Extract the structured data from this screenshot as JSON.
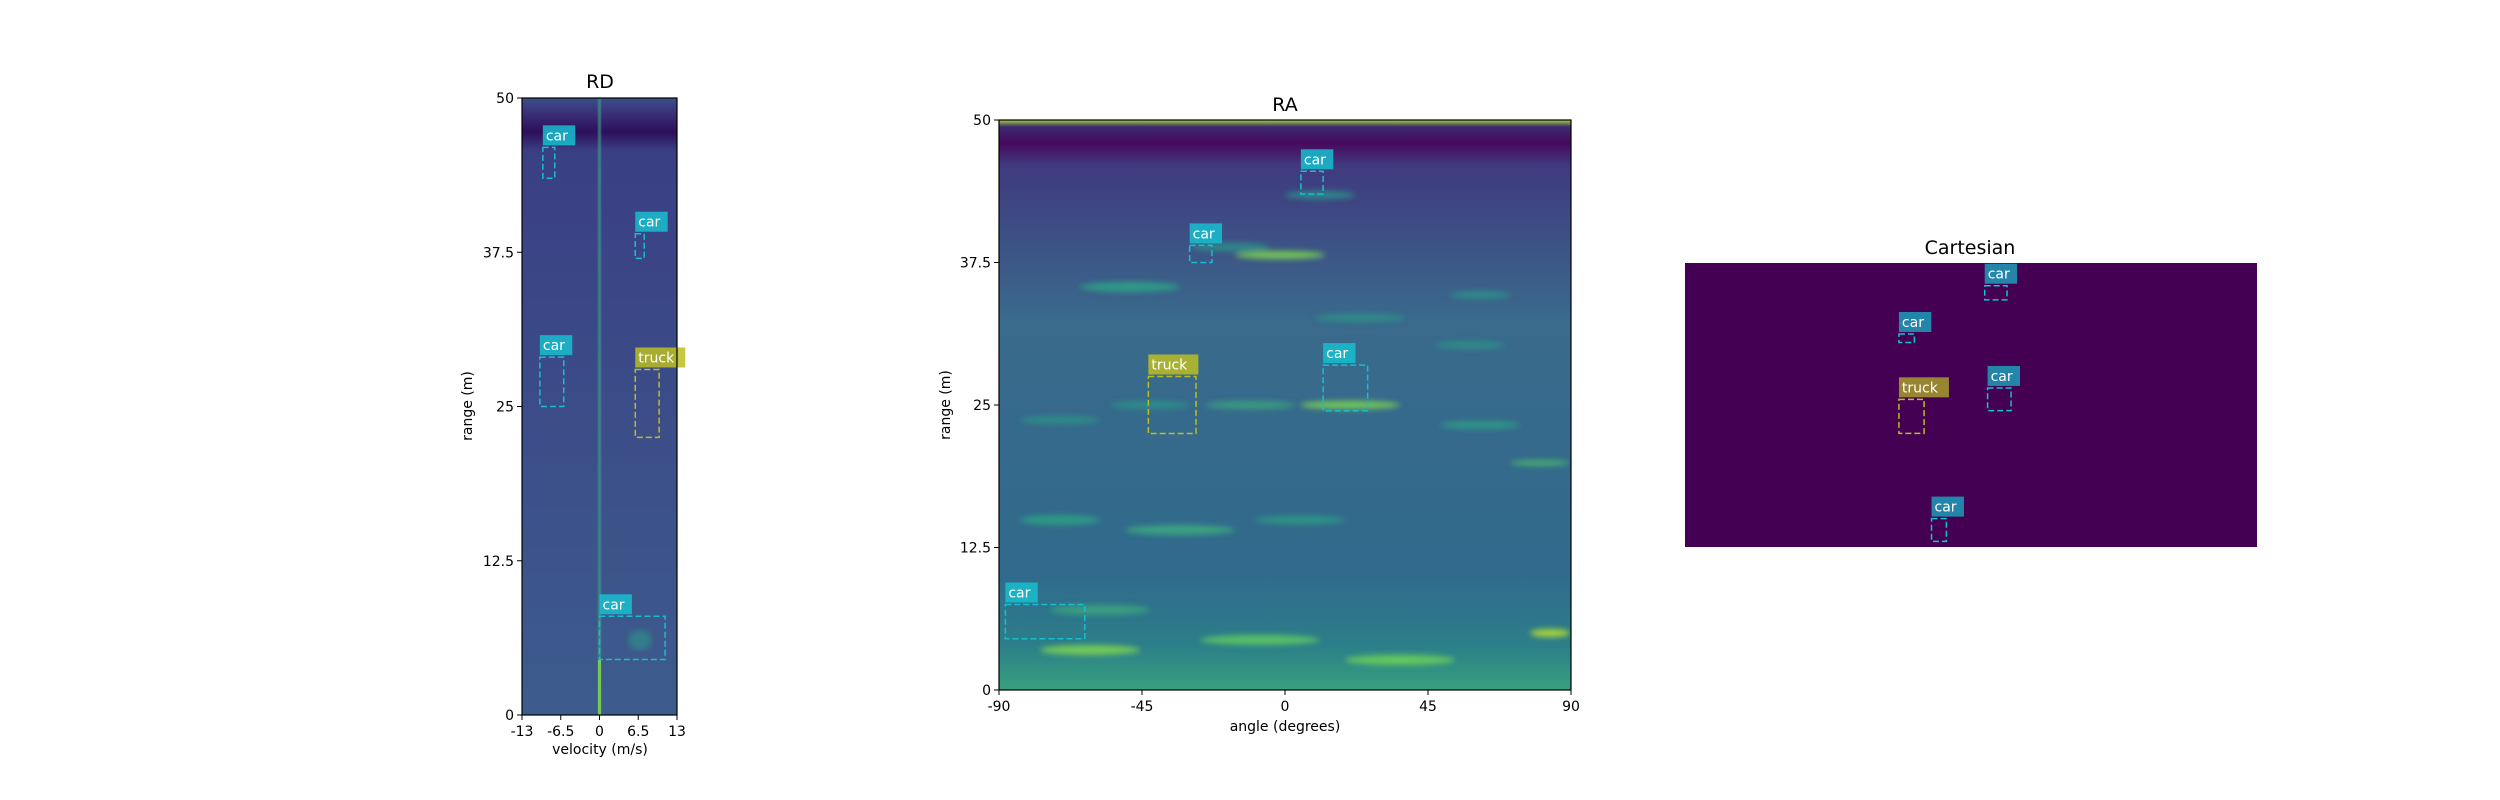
{
  "chart_data": [
    {
      "type": "heatmap",
      "title": "RD",
      "xlabel": "velocity (m/s)",
      "ylabel": "range (m)",
      "xlim": [
        -13,
        13
      ],
      "ylim": [
        0,
        50
      ],
      "xticks": [
        "-13",
        "-6.5",
        "0",
        "6.5",
        "13"
      ],
      "yticks": [
        "0",
        "12.5",
        "25",
        "37.5",
        "50"
      ],
      "colormap": "viridis",
      "detections": [
        {
          "label": "car",
          "x": [
            -9.5,
            -7.5
          ],
          "y": [
            43.5,
            46
          ]
        },
        {
          "label": "car",
          "x": [
            6,
            7.5
          ],
          "y": [
            37,
            39
          ]
        },
        {
          "label": "car",
          "x": [
            -10,
            -6
          ],
          "y": [
            25,
            29
          ]
        },
        {
          "label": "truck",
          "x": [
            6,
            10
          ],
          "y": [
            22.5,
            28
          ]
        },
        {
          "label": "car",
          "x": [
            0,
            11
          ],
          "y": [
            4.5,
            8
          ]
        }
      ]
    },
    {
      "type": "heatmap",
      "title": "RA",
      "xlabel": "angle (degrees)",
      "ylabel": "range (m)",
      "xlim": [
        -90,
        90
      ],
      "ylim": [
        0,
        50
      ],
      "xticks": [
        "-90",
        "-45",
        "0",
        "45",
        "90"
      ],
      "yticks": [
        "0",
        "12.5",
        "25",
        "37.5",
        "50"
      ],
      "colormap": "viridis",
      "detections": [
        {
          "label": "car",
          "x": [
            5,
            12
          ],
          "y": [
            43.5,
            45.5
          ]
        },
        {
          "label": "car",
          "x": [
            -30,
            -23
          ],
          "y": [
            37.5,
            39
          ]
        },
        {
          "label": "truck",
          "x": [
            -43,
            -28
          ],
          "y": [
            22.5,
            27.5
          ]
        },
        {
          "label": "car",
          "x": [
            12,
            26
          ],
          "y": [
            24.5,
            28.5
          ]
        },
        {
          "label": "car",
          "x": [
            -88,
            -63
          ],
          "y": [
            4.5,
            7.5
          ]
        }
      ]
    },
    {
      "type": "heatmap",
      "title": "Cartesian",
      "colormap": "viridis",
      "detections": [
        {
          "label": "car",
          "x": [
            0.524,
            0.563
          ],
          "y": [
            0.87,
            0.92
          ]
        },
        {
          "label": "car",
          "x": [
            0.374,
            0.401
          ],
          "y": [
            0.72,
            0.75
          ]
        },
        {
          "label": "truck",
          "x": [
            0.374,
            0.418
          ],
          "y": [
            0.4,
            0.52
          ]
        },
        {
          "label": "car",
          "x": [
            0.529,
            0.57
          ],
          "y": [
            0.48,
            0.56
          ]
        },
        {
          "label": "car",
          "x": [
            0.431,
            0.457
          ],
          "y": [
            0.02,
            0.1
          ]
        }
      ]
    }
  ],
  "colors": {
    "car": "#17becf",
    "truck": "#bcbd22",
    "viridis_low": "#440154",
    "viridis_bg": "#3b528b",
    "viridis_mid": "#21918c",
    "viridis_high": "#fde725"
  }
}
